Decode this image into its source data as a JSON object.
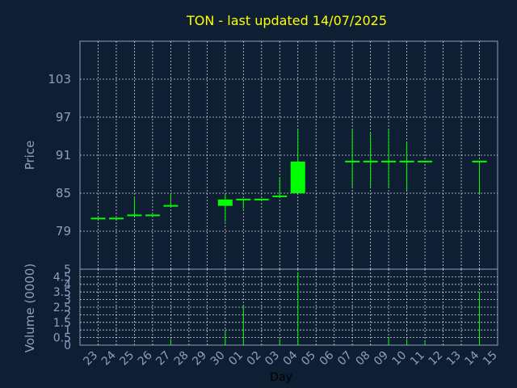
{
  "chart_data": {
    "type": "candlestick",
    "title": "TON - last updated 14/07/2025",
    "xlabel": "Day",
    "ylabel": "Price",
    "volume_label": "Volume (0000)",
    "colors": {
      "background": "#0f1f33",
      "candle": "#00ff00",
      "title": "#ffff00",
      "axis_text": "#8aa0c0",
      "grid": "#ffffff"
    },
    "grid": true,
    "price_ticks": [
      79,
      85,
      91,
      97,
      103
    ],
    "price_range": [
      73,
      109
    ],
    "volume_ticks": [
      "0",
      "0.5",
      "1",
      "1.5",
      "2",
      "2.5",
      "3",
      "3.5",
      "4",
      "4.5",
      "5"
    ],
    "volume_range": [
      0,
      5
    ],
    "x_ticks": [
      "23",
      "24",
      "25",
      "26",
      "27",
      "28",
      "29",
      "30",
      "01",
      "02",
      "03",
      "04",
      "05",
      "06",
      "07",
      "08",
      "09",
      "10",
      "11",
      "12",
      "13",
      "14",
      "15"
    ],
    "candles": [
      {
        "day": "23",
        "open": 81.0,
        "high": 81.0,
        "low": 81.0,
        "close": 81.0,
        "volume": 0
      },
      {
        "day": "24",
        "open": 81.0,
        "high": 81.0,
        "low": 81.0,
        "close": 81.0,
        "volume": 0
      },
      {
        "day": "25",
        "open": 81.5,
        "high": 84.5,
        "low": 81.5,
        "close": 81.5,
        "volume": 0.1
      },
      {
        "day": "26",
        "open": 81.5,
        "high": 81.5,
        "low": 81.5,
        "close": 81.5,
        "volume": 0
      },
      {
        "day": "27",
        "open": 83.0,
        "high": 85.0,
        "low": 83.0,
        "close": 83.0,
        "volume": 0.4
      },
      {
        "day": "30",
        "open": 83.0,
        "high": 85.0,
        "low": 80.5,
        "close": 84.0,
        "volume": 1.0
      },
      {
        "day": "01",
        "open": 84.0,
        "high": 84.0,
        "low": 82.5,
        "close": 84.0,
        "volume": 2.6
      },
      {
        "day": "02",
        "open": 84.0,
        "high": 84.0,
        "low": 84.0,
        "close": 84.0,
        "volume": 0
      },
      {
        "day": "03",
        "open": 84.5,
        "high": 87.5,
        "low": 84.5,
        "close": 84.5,
        "volume": 0.4
      },
      {
        "day": "04",
        "open": 85.0,
        "high": 95.0,
        "low": 85.0,
        "close": 90.0,
        "volume": 4.8
      },
      {
        "day": "07",
        "open": 90.0,
        "high": 95.0,
        "low": 86.0,
        "close": 90.0,
        "volume": 0
      },
      {
        "day": "08",
        "open": 90.0,
        "high": 94.5,
        "low": 86.0,
        "close": 90.0,
        "volume": 0
      },
      {
        "day": "09",
        "open": 90.0,
        "high": 95.0,
        "low": 86.0,
        "close": 90.0,
        "volume": 0.5
      },
      {
        "day": "10",
        "open": 90.0,
        "high": 93.0,
        "low": 85.5,
        "close": 90.0,
        "volume": 0.4
      },
      {
        "day": "11",
        "open": 90.0,
        "high": 90.0,
        "low": 90.0,
        "close": 90.0,
        "volume": 0.2
      },
      {
        "day": "14",
        "open": 90.0,
        "high": 90.0,
        "low": 85.0,
        "close": 90.0,
        "volume": 3.5
      }
    ]
  }
}
